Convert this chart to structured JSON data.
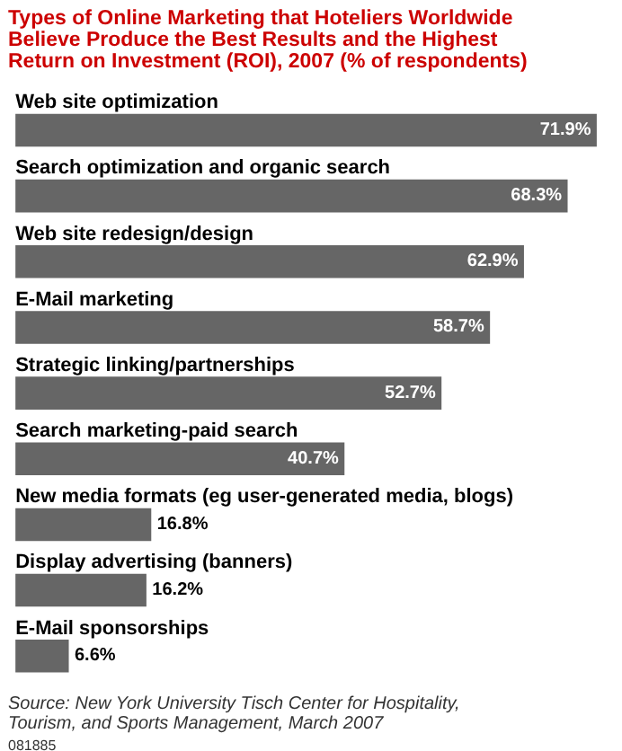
{
  "chart_data": {
    "type": "bar",
    "orientation": "horizontal",
    "title": "Types of Online Marketing that Hoteliers Worldwide Believe Produce the Best Results and the Highest Return on Investment (ROI), 2007 (% of respondents)",
    "categories": [
      "Web site optimization",
      "Search optimization and organic search",
      "Web site redesign/design",
      "E-Mail marketing",
      "Strategic linking/partnerships",
      "Search marketing-paid search",
      "New media formats (eg user-generated media, blogs)",
      "Display advertising (banners)",
      "E-Mail sponsorships"
    ],
    "values": [
      71.9,
      68.3,
      62.9,
      58.7,
      52.7,
      40.7,
      16.8,
      16.2,
      6.6
    ],
    "color": "#666666",
    "value_labels": [
      "71.9%",
      "68.3%",
      "62.9%",
      "58.7%",
      "52.7%",
      "40.7%",
      "16.8%",
      "16.2%",
      "6.6%"
    ],
    "grid": false,
    "tick_labels": false,
    "annotations": [
      "Source: New York University Tisch Center for Hospitality, Tourism, and Sports Management, March 2007",
      "081885"
    ]
  }
}
